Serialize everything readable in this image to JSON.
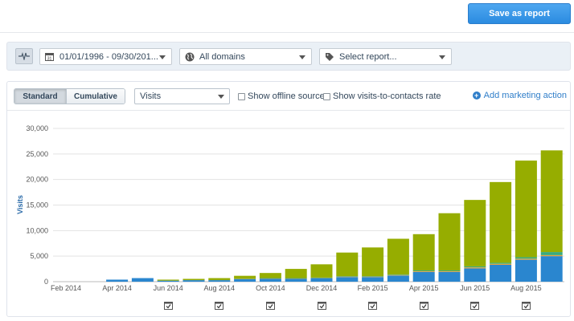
{
  "header": {
    "save_label": "Save as report"
  },
  "filters": {
    "pulse_icon": "activity-icon",
    "date_range": "01/01/1996 - 09/30/201...",
    "date_icon": "calendar-icon",
    "domain": "All domains",
    "domain_icon": "globe-icon",
    "report": "Select report...",
    "report_icon": "tag-icon"
  },
  "controls": {
    "standard_label": "Standard",
    "cumulative_label": "Cumulative",
    "metric": "Visits",
    "offline_label": "Show offline sources",
    "visits_contacts_label": "Show visits-to-contacts rate",
    "add_action_label": "Add marketing action"
  },
  "colors": {
    "green": "#96ad00",
    "blue": "#2a86cf",
    "teal": "#3aaa7c",
    "orange": "#e8a23a"
  },
  "chart_data": {
    "type": "bar",
    "stacked": true,
    "ylabel": "Visits",
    "ylim": [
      0,
      30000
    ],
    "yticks": [
      "0",
      "5,000",
      "10,000",
      "15,000",
      "20,000",
      "25,000",
      "30,000"
    ],
    "x_tick_labels": [
      "Feb 2014",
      "Apr 2014",
      "Jun 2014",
      "Aug 2014",
      "Oct 2014",
      "Dec 2014",
      "Feb 2015",
      "Apr 2015",
      "Jun 2015",
      "Aug 2015"
    ],
    "categories": [
      "Feb 2014",
      "Mar 2014",
      "Apr 2014",
      "May 2014",
      "Jun 2014",
      "Jul 2014",
      "Aug 2014",
      "Sep 2014",
      "Oct 2014",
      "Nov 2014",
      "Dec 2014",
      "Jan 2015",
      "Feb 2015",
      "Mar 2015",
      "Apr 2015",
      "May 2015",
      "Jun 2015",
      "Jul 2015",
      "Aug 2015",
      "Sep 2015"
    ],
    "series": [
      {
        "color": "#2a86cf",
        "values": [
          0,
          0,
          400,
          700,
          200,
          300,
          300,
          500,
          600,
          600,
          700,
          900,
          900,
          1200,
          1900,
          1900,
          2600,
          3300,
          4300,
          5000
        ]
      },
      {
        "color": "#e8a23a",
        "values": [
          0,
          0,
          0,
          0,
          0,
          0,
          0,
          50,
          50,
          50,
          50,
          100,
          100,
          100,
          150,
          150,
          200,
          200,
          200,
          200
        ]
      },
      {
        "color": "#3aaa7c",
        "values": [
          0,
          0,
          0,
          0,
          0,
          0,
          0,
          50,
          50,
          50,
          50,
          100,
          100,
          100,
          150,
          150,
          200,
          200,
          300,
          600
        ]
      },
      {
        "color": "#96ad00",
        "values": [
          0,
          0,
          0,
          0,
          200,
          250,
          400,
          550,
          1000,
          1800,
          2600,
          4600,
          5600,
          7000,
          7100,
          11200,
          13000,
          15800,
          18900,
          19900
        ]
      }
    ],
    "grid": true,
    "markers_at": [
      "Jun 2014",
      "Aug 2014",
      "Oct 2014",
      "Dec 2014",
      "Feb 2015",
      "Apr 2015",
      "Jun 2015",
      "Aug 2015"
    ],
    "marker_icon": "calendar-check-icon"
  }
}
